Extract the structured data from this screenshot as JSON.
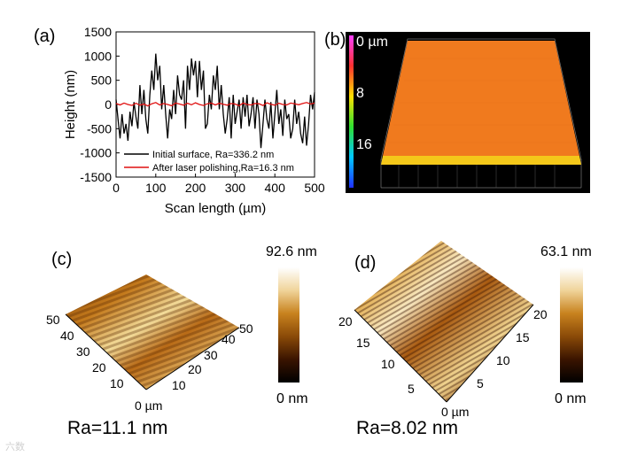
{
  "figure": {
    "panel_labels": [
      "(a)",
      "(b)",
      "(c)",
      "(d)"
    ],
    "ra_c": "Ra=11.1 nm",
    "ra_d": "Ra=8.02 nm",
    "watermark": "六数"
  },
  "panel_b": {
    "scale_labels": [
      "0 µm",
      "8",
      "16"
    ],
    "colors": {
      "background": "#000000",
      "surface": "#f07a1e",
      "surface_edge": "#f4c81a"
    }
  },
  "panel_c": {
    "cbar_top": "92.6 nm",
    "cbar_bottom": "0 nm",
    "left_axis_ticks": [
      "50",
      "40",
      "30",
      "20",
      "10"
    ],
    "right_axis_ticks": [
      "10",
      "20",
      "30",
      "40",
      "50"
    ],
    "origin_label": "0 µm"
  },
  "panel_d": {
    "cbar_top": "63.1 nm",
    "cbar_bottom": "0 nm",
    "left_axis_ticks": [
      "20",
      "15",
      "10",
      "5"
    ],
    "right_axis_ticks": [
      "5",
      "10",
      "15",
      "20"
    ],
    "origin_label": "0 µm"
  },
  "chart_data": {
    "type": "line",
    "title": "",
    "xlabel": "Scan length (µm)",
    "ylabel": "Height (nm)",
    "xlim": [
      0,
      500
    ],
    "ylim": [
      -1500,
      1500
    ],
    "xticks": [
      0,
      100,
      200,
      300,
      400,
      500
    ],
    "yticks": [
      -1500,
      -1000,
      -500,
      0,
      500,
      1000,
      1500
    ],
    "legend_position": "bottom-right",
    "series": [
      {
        "name": "Initial surface, Ra=336.2 nm",
        "color": "#000000",
        "x": [
          0,
          5,
          10,
          15,
          20,
          25,
          30,
          35,
          40,
          45,
          50,
          55,
          60,
          65,
          70,
          75,
          80,
          85,
          90,
          95,
          100,
          105,
          110,
          115,
          120,
          125,
          130,
          135,
          140,
          145,
          150,
          155,
          160,
          165,
          170,
          175,
          180,
          185,
          190,
          195,
          200,
          205,
          210,
          215,
          220,
          225,
          230,
          235,
          240,
          245,
          250,
          255,
          260,
          265,
          270,
          275,
          280,
          285,
          290,
          295,
          300,
          305,
          310,
          315,
          320,
          325,
          330,
          335,
          340,
          345,
          350,
          355,
          360,
          365,
          370,
          375,
          380,
          385,
          390,
          395,
          400,
          405,
          410,
          415,
          420,
          425,
          430,
          435,
          440,
          445,
          450,
          455,
          460,
          465,
          470,
          475,
          480,
          485,
          490,
          495,
          500
        ],
        "y": [
          100,
          -300,
          -700,
          -200,
          -600,
          -400,
          -750,
          -150,
          -450,
          50,
          -250,
          -500,
          400,
          -200,
          300,
          -300,
          -600,
          200,
          700,
          300,
          1050,
          500,
          800,
          -100,
          400,
          -200,
          -700,
          -100,
          -300,
          300,
          -200,
          600,
          200,
          100,
          500,
          -500,
          800,
          300,
          950,
          600,
          900,
          150,
          900,
          300,
          700,
          -500,
          -400,
          200,
          -100,
          600,
          300,
          800,
          -100,
          400,
          -200,
          -600,
          -300,
          150,
          -700,
          200,
          -400,
          -150,
          100,
          -500,
          150,
          -250,
          200,
          -450,
          -200,
          150,
          -500,
          100,
          -200,
          -900,
          -400,
          100,
          -300,
          -500,
          50,
          -700,
          -200,
          300,
          -400,
          -100,
          -650,
          100,
          -300,
          -200,
          -700,
          -500,
          100,
          -400,
          -150,
          -600,
          -800,
          -250,
          -850,
          -400,
          200,
          -100,
          250
        ]
      },
      {
        "name": "After laser polishing,Ra=16.3 nm",
        "color": "#e01010",
        "x": [
          0,
          10,
          20,
          30,
          40,
          50,
          60,
          70,
          80,
          90,
          100,
          110,
          120,
          130,
          140,
          150,
          160,
          170,
          180,
          190,
          200,
          210,
          220,
          230,
          240,
          250,
          260,
          270,
          280,
          290,
          300,
          310,
          320,
          330,
          340,
          350,
          360,
          370,
          380,
          390,
          400,
          410,
          420,
          430,
          440,
          450,
          460,
          470,
          480,
          490,
          500
        ],
        "y": [
          20,
          -10,
          30,
          0,
          -20,
          25,
          -15,
          10,
          -30,
          15,
          40,
          -10,
          20,
          0,
          -25,
          30,
          10,
          -15,
          25,
          -5,
          35,
          0,
          -20,
          15,
          30,
          -10,
          25,
          5,
          -15,
          20,
          10,
          -25,
          30,
          0,
          -10,
          20,
          15,
          -20,
          35,
          5,
          -15,
          25,
          0,
          -10,
          30,
          15,
          -5,
          20,
          40,
          10,
          30
        ]
      }
    ]
  }
}
